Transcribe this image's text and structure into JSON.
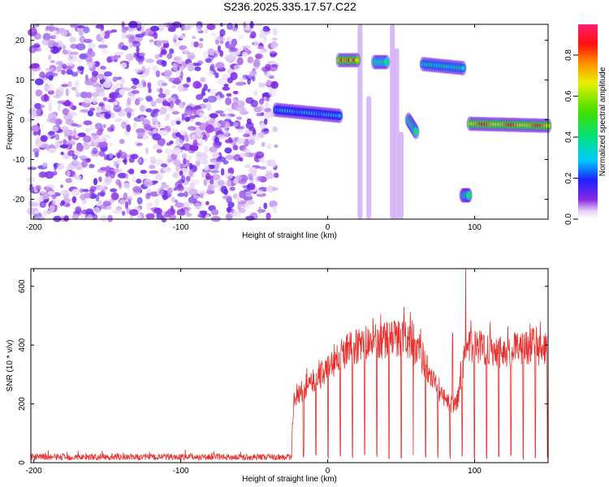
{
  "title": "S236.2025.335.17.57.C22",
  "chart_data": [
    {
      "type": "heatmap",
      "xlabel": "Height of straight line (km)",
      "ylabel": "Frequency (Hz)",
      "xlim": [
        -202,
        150
      ],
      "ylim": [
        -25,
        24
      ],
      "xticks": [
        -200,
        -100,
        0,
        100
      ],
      "yticks": [
        -20,
        -10,
        0,
        10,
        20
      ],
      "colorbar": {
        "label": "Normalized spectral amplitude",
        "range": [
          0.0,
          0.95
        ],
        "ticks": [
          0.0,
          0.2,
          0.4,
          0.6,
          0.8
        ]
      },
      "noise_region_x": [
        -202,
        -35
      ],
      "features": [
        {
          "x_start": -35,
          "x_end": 8,
          "freq_start": 2.5,
          "freq_end": 1.0,
          "peak": 0.35
        },
        {
          "x_start": 8,
          "x_end": 20,
          "freq_start": 15,
          "freq_end": 15,
          "peak": 0.95
        },
        {
          "x_start": 32,
          "x_end": 40,
          "freq_start": 14.5,
          "freq_end": 14.5,
          "peak": 0.55
        },
        {
          "x_start": 65,
          "x_end": 92,
          "freq_start": 14,
          "freq_end": 13,
          "peak": 0.45
        },
        {
          "x_start": 55,
          "x_end": 60,
          "freq_start": 0,
          "freq_end": -3,
          "peak": 0.6
        },
        {
          "x_start": 92,
          "x_end": 96,
          "freq_start": -19,
          "freq_end": -19,
          "peak": 0.6
        },
        {
          "x_start": 97,
          "x_end": 150,
          "freq_start": -1,
          "freq_end": -1.5,
          "peak": 0.9
        }
      ]
    },
    {
      "type": "line",
      "xlabel": "Height of straight line (km)",
      "ylabel": "SNR (10 * v/v)",
      "xlim": [
        -202,
        150
      ],
      "ylim": [
        0,
        660
      ],
      "xticks": [
        -200,
        -100,
        0,
        100
      ],
      "yticks": [
        0,
        200,
        400,
        600
      ],
      "series": [
        {
          "color": "#e8312e",
          "envelope_x": [
            -202,
            -150,
            -100,
            -50,
            -25,
            -23,
            -15,
            0,
            10,
            20,
            30,
            40,
            50,
            55,
            60,
            70,
            75,
            80,
            85,
            88,
            90,
            93,
            95,
            100,
            110,
            120,
            130,
            140,
            150
          ],
          "envelope_y": [
            20,
            20,
            20,
            20,
            20,
            220,
            260,
            330,
            380,
            410,
            420,
            430,
            440,
            430,
            390,
            320,
            260,
            220,
            200,
            210,
            270,
            360,
            400,
            410,
            400,
            390,
            400,
            410,
            390
          ],
          "spikes": [
            {
              "x": 52,
              "y": 530
            },
            {
              "x": 94,
              "y": 660
            },
            {
              "x": 85,
              "y": 440
            }
          ]
        }
      ]
    }
  ]
}
